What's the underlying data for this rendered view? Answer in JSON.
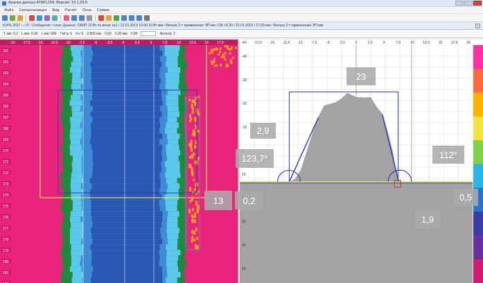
{
  "window": {
    "title": "Анализ данных ATAFLOW. Версия: 10.1.29.8"
  },
  "menu": {
    "items": [
      "Файл",
      "Синхронизация",
      "Вид",
      "Расчёт",
      "Окна",
      "Сервис"
    ]
  },
  "document_tab": {
    "label": "КУРЕ 2017 — 07: Сообщения / слои: Данные: СВИП 10 Вт по ветке №1 / 22.01.2019 10:00:10 Вт мм / Фильтр 3 = применение ЭП мм / ОК +0,20 / 22.01.2019 / 17,00 мм / Фильтр 2 = применение ЭП мм"
  },
  "params_bar": {
    "items": [
      "Т мм: 0,2",
      "L мм: 0,96",
      "L мм: 999",
      "Т/кГц: 0",
      "Кэ: 0",
      "2,800 мм",
      "0,00",
      "2,00 мм",
      "0,80",
      "Фильтр: 2"
    ]
  },
  "scan_view": {
    "row_labels": [
      "161",
      "162",
      "163",
      "164",
      "165",
      "166",
      "167",
      "168",
      "169",
      "170",
      "171",
      "172",
      "173",
      "174",
      "175",
      "176",
      "177",
      "178",
      "179",
      "180",
      "181",
      "182"
    ],
    "col_labels": [
      "-20",
      "-17,5",
      "-15",
      "-12,5",
      "-10",
      "-7,5",
      "-5",
      "-2,5",
      "0",
      "2,5",
      "5",
      "7,5",
      "10",
      "12,5",
      "15",
      "17,5"
    ]
  },
  "chart_data": {
    "type": "area",
    "xlim": [
      -20,
      20
    ],
    "ylim": [
      -60,
      60
    ],
    "x_tick_labels": [
      "-40",
      "-17,5",
      "-15",
      "-12,5",
      "-10",
      "-7,5",
      "-5",
      "-2,5",
      "0",
      "2,5",
      "5",
      "7,5",
      "10",
      "12,5",
      "15",
      "17,5",
      "20"
    ],
    "y_tick_labels": [
      "-40",
      "-30",
      "-20",
      "-10",
      "0",
      "10",
      "20",
      "30",
      "40",
      "50"
    ],
    "profile": {
      "x": [
        -20,
        -11.5,
        -10.5,
        -9.5,
        -8.5,
        -7.5,
        -6.5,
        -5.5,
        -4.5,
        -3.5,
        -2.5,
        -1.5,
        0,
        1.5,
        2.5,
        3.5,
        4.5,
        5.5,
        6.3,
        6.8,
        7.3,
        20
      ],
      "y": [
        0,
        0,
        1,
        4,
        10,
        16,
        21,
        24,
        26,
        27,
        28,
        28.5,
        28.5,
        28,
        27,
        25,
        22,
        16,
        10,
        4,
        0,
        0
      ]
    },
    "reference_line_y": 0,
    "grid": true
  },
  "annotations": {
    "height_23": "23",
    "offset_2_9": "2,9",
    "angle_left": "123,7°",
    "angle_right": "112°",
    "width_13": "13",
    "val_0_2": "0,2",
    "val_1_9": "1,9",
    "val_0_5": "0,5"
  },
  "colors": {
    "scan_edge": "#e8247a",
    "scan_green": "#1d8a3c",
    "scan_light": "#5cc8ec",
    "scan_mid": "#3e8ad6",
    "scan_deep": "#2a56b4",
    "accent_yellow": "#e3e84a",
    "accent_blue": "#2d3ab8",
    "profile_fill": "#a3a3a3",
    "orange_hits": "#f2a51a"
  }
}
